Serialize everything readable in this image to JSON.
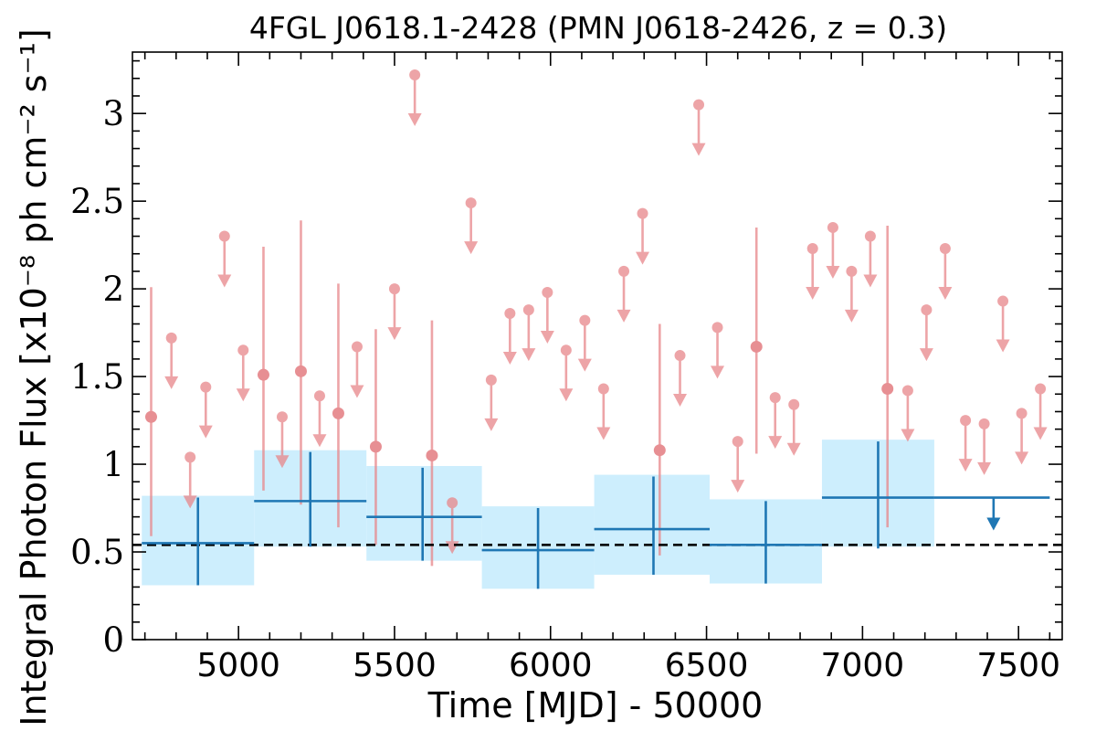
{
  "chart_data": {
    "type": "scatter",
    "title": "4FGL J0618.1-2428 (PMN J0618-2426, z = 0.3)",
    "xlabel": "Time [MJD] - 50000",
    "ylabel": "Integral Photon Flux [x10⁻⁸ ph cm⁻² s⁻¹]",
    "xlim": [
      4660,
      7640
    ],
    "ylim": [
      0,
      3.35
    ],
    "x_ticks": [
      5000,
      5500,
      6000,
      6500,
      7000,
      7500
    ],
    "y_ticks": [
      0,
      0.5,
      1,
      1.5,
      2,
      2.5,
      3
    ],
    "y_tick_labels": [
      "0",
      "0.5",
      "1",
      "1.5",
      "2",
      "2.5",
      "3"
    ],
    "colors": {
      "short_bins": "#e8868a",
      "long_bins": "#1f77b4",
      "band_fill": "#cdeefd",
      "reference_line": "#000000"
    },
    "reference_line": {
      "y": 0.54,
      "style": "dashed"
    },
    "long_bins": [
      {
        "x": 4870,
        "x_lo": 4690,
        "x_hi": 5050,
        "y": 0.55,
        "y_lo": 0.31,
        "y_hi": 0.81
      },
      {
        "x": 5230,
        "x_lo": 5050,
        "x_hi": 5410,
        "y": 0.79,
        "y_lo": 0.53,
        "y_hi": 1.07
      },
      {
        "x": 5590,
        "x_lo": 5410,
        "x_hi": 5780,
        "y": 0.7,
        "y_lo": 0.45,
        "y_hi": 0.98
      },
      {
        "x": 5960,
        "x_lo": 5780,
        "x_hi": 6140,
        "y": 0.51,
        "y_lo": 0.29,
        "y_hi": 0.75
      },
      {
        "x": 6330,
        "x_lo": 6140,
        "x_hi": 6510,
        "y": 0.63,
        "y_lo": 0.37,
        "y_hi": 0.93
      },
      {
        "x": 6690,
        "x_lo": 6510,
        "x_hi": 6870,
        "y": 0.54,
        "y_lo": 0.32,
        "y_hi": 0.79
      },
      {
        "x": 7050,
        "x_lo": 6870,
        "x_hi": 7230,
        "y": 0.81,
        "y_lo": 0.52,
        "y_hi": 1.13
      }
    ],
    "long_bin_upper_limits": [
      {
        "x": 7420,
        "x_lo": 7230,
        "x_hi": 7600,
        "y": 0.81
      }
    ],
    "bands": [
      {
        "x_lo": 4690,
        "x_hi": 5050,
        "y_lo": 0.31,
        "y_hi": 0.82
      },
      {
        "x_lo": 5050,
        "x_hi": 5410,
        "y_lo": 0.53,
        "y_hi": 1.08
      },
      {
        "x_lo": 5410,
        "x_hi": 5780,
        "y_lo": 0.45,
        "y_hi": 0.99
      },
      {
        "x_lo": 5780,
        "x_hi": 6140,
        "y_lo": 0.29,
        "y_hi": 0.76
      },
      {
        "x_lo": 6140,
        "x_hi": 6510,
        "y_lo": 0.37,
        "y_hi": 0.94
      },
      {
        "x_lo": 6510,
        "x_hi": 6870,
        "y_lo": 0.32,
        "y_hi": 0.8
      },
      {
        "x_lo": 6870,
        "x_hi": 7230,
        "y_lo": 0.53,
        "y_hi": 1.14
      }
    ],
    "short_detections": [
      {
        "x": 4720,
        "y": 1.27,
        "y_lo": 0.59,
        "y_hi": 2.01
      },
      {
        "x": 5080,
        "y": 1.51,
        "y_lo": 0.85,
        "y_hi": 2.24
      },
      {
        "x": 5200,
        "y": 1.53,
        "y_lo": 0.77,
        "y_hi": 2.39
      },
      {
        "x": 5320,
        "y": 1.29,
        "y_lo": 0.64,
        "y_hi": 2.03
      },
      {
        "x": 5440,
        "y": 1.1,
        "y_lo": 0.54,
        "y_hi": 1.77
      },
      {
        "x": 5620,
        "y": 1.05,
        "y_lo": 0.42,
        "y_hi": 1.82
      },
      {
        "x": 6350,
        "y": 1.08,
        "y_lo": 0.48,
        "y_hi": 1.8
      },
      {
        "x": 6660,
        "y": 1.67,
        "y_lo": 1.06,
        "y_hi": 2.35
      },
      {
        "x": 7080,
        "y": 1.43,
        "y_lo": 0.64,
        "y_hi": 2.36
      }
    ],
    "short_upper_limits": [
      {
        "x": 4785,
        "y": 1.72
      },
      {
        "x": 4845,
        "y": 1.04
      },
      {
        "x": 4895,
        "y": 1.44
      },
      {
        "x": 4955,
        "y": 2.3
      },
      {
        "x": 5015,
        "y": 1.65
      },
      {
        "x": 5140,
        "y": 1.27
      },
      {
        "x": 5260,
        "y": 1.39
      },
      {
        "x": 5380,
        "y": 1.67
      },
      {
        "x": 5500,
        "y": 2.0
      },
      {
        "x": 5565,
        "y": 3.22
      },
      {
        "x": 5685,
        "y": 0.78
      },
      {
        "x": 5745,
        "y": 2.49
      },
      {
        "x": 5810,
        "y": 1.48
      },
      {
        "x": 5870,
        "y": 1.86
      },
      {
        "x": 5930,
        "y": 1.88
      },
      {
        "x": 5990,
        "y": 1.98
      },
      {
        "x": 6050,
        "y": 1.65
      },
      {
        "x": 6110,
        "y": 1.82
      },
      {
        "x": 6170,
        "y": 1.43
      },
      {
        "x": 6235,
        "y": 2.1
      },
      {
        "x": 6295,
        "y": 2.43
      },
      {
        "x": 6415,
        "y": 1.62
      },
      {
        "x": 6475,
        "y": 3.05
      },
      {
        "x": 6535,
        "y": 1.78
      },
      {
        "x": 6600,
        "y": 1.13
      },
      {
        "x": 6720,
        "y": 1.38
      },
      {
        "x": 6780,
        "y": 1.34
      },
      {
        "x": 6840,
        "y": 2.23
      },
      {
        "x": 6905,
        "y": 2.35
      },
      {
        "x": 6965,
        "y": 2.1
      },
      {
        "x": 7025,
        "y": 2.3
      },
      {
        "x": 7145,
        "y": 1.42
      },
      {
        "x": 7205,
        "y": 1.88
      },
      {
        "x": 7265,
        "y": 2.23
      },
      {
        "x": 7330,
        "y": 1.25
      },
      {
        "x": 7390,
        "y": 1.23
      },
      {
        "x": 7450,
        "y": 1.93
      },
      {
        "x": 7510,
        "y": 1.29
      },
      {
        "x": 7570,
        "y": 1.43
      }
    ]
  }
}
